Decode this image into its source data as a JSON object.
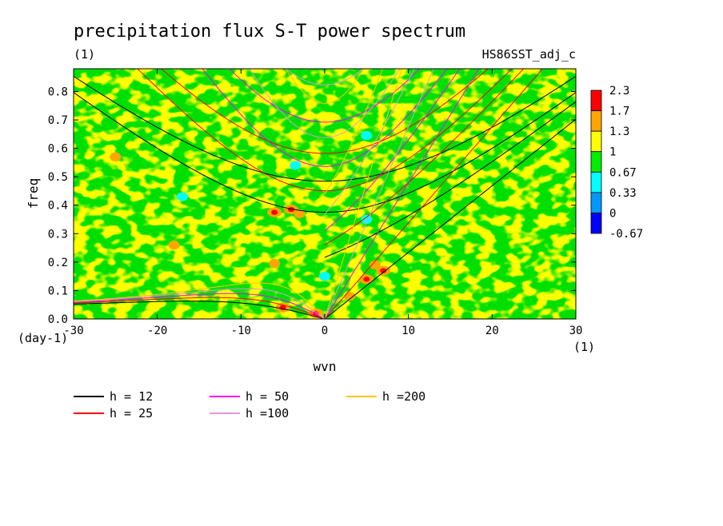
{
  "chart_data": {
    "type": "heatmap",
    "title": "precipitation flux S-T power spectrum",
    "subtitle_left": "(1)",
    "subtitle_right": "HS86SST_adj_c",
    "xlabel": "wvn",
    "ylabel": "freq",
    "x_unit": "(1)",
    "y_unit": "(day-1)",
    "xlim": [
      -30,
      30
    ],
    "ylim": [
      0,
      0.88
    ],
    "xticks": [
      "-30",
      "-20",
      "-10",
      "0",
      "10",
      "20",
      "30"
    ],
    "xtick_values": [
      -30,
      -20,
      -10,
      0,
      10,
      20,
      30
    ],
    "yticks": [
      "0.0",
      "0.1",
      "0.2",
      "0.3",
      "0.4",
      "0.5",
      "0.6",
      "0.7",
      "0.8"
    ],
    "ytick_values": [
      0,
      0.1,
      0.2,
      0.3,
      0.4,
      0.5,
      0.6,
      0.7,
      0.8
    ],
    "colorbar": {
      "levels": [
        "2.3",
        "1.7",
        "1.3",
        "1",
        "0.67",
        "0.33",
        "0",
        "-0.67"
      ],
      "colors": [
        "#ff0000",
        "#ffa500",
        "#ffff00",
        "#00ee00",
        "#00ffff",
        "#0099ff",
        "#0000ff"
      ]
    },
    "field_colors": {
      "background": "#00e000",
      "moderate": "#ffff00",
      "high": "#ffa500",
      "peak": "#ff0000",
      "low": "#00ffff"
    },
    "dispersion_curves": [
      {
        "name": "h = 12",
        "h": 12,
        "color": "#000000"
      },
      {
        "name": "h = 25",
        "h": 25,
        "color": "#ff0000"
      },
      {
        "name": "h = 50",
        "h": 50,
        "color": "#ff00ff"
      },
      {
        "name": "h =100",
        "h": 100,
        "color": "#dd99dd"
      },
      {
        "name": "h =200",
        "h": 200,
        "color": "#ffc800"
      }
    ],
    "spectral_peaks": [
      {
        "wvn": -6,
        "freq": 0.375,
        "level": "peak"
      },
      {
        "wvn": -4,
        "freq": 0.385,
        "level": "peak"
      },
      {
        "wvn": -5,
        "freq": 0.04,
        "level": "peak"
      },
      {
        "wvn": -1,
        "freq": 0.02,
        "level": "peak"
      },
      {
        "wvn": 5,
        "freq": 0.14,
        "level": "peak"
      },
      {
        "wvn": 7,
        "freq": 0.17,
        "level": "peak"
      },
      {
        "wvn": -25,
        "freq": 0.57,
        "level": "high"
      },
      {
        "wvn": -18,
        "freq": 0.26,
        "level": "high"
      },
      {
        "wvn": -6,
        "freq": 0.195,
        "level": "high"
      },
      {
        "wvn": -3,
        "freq": 0.37,
        "level": "high"
      },
      {
        "wvn": 6,
        "freq": 0.19,
        "level": "high"
      },
      {
        "wvn": 3,
        "freq": 0.08,
        "level": "high"
      },
      {
        "wvn": 5,
        "freq": 0.645,
        "level": "low"
      },
      {
        "wvn": -3.5,
        "freq": 0.54,
        "level": "low"
      },
      {
        "wvn": 5,
        "freq": 0.35,
        "level": "low"
      },
      {
        "wvn": 0,
        "freq": 0.15,
        "level": "low"
      },
      {
        "wvn": -17,
        "freq": 0.43,
        "level": "low"
      }
    ]
  }
}
